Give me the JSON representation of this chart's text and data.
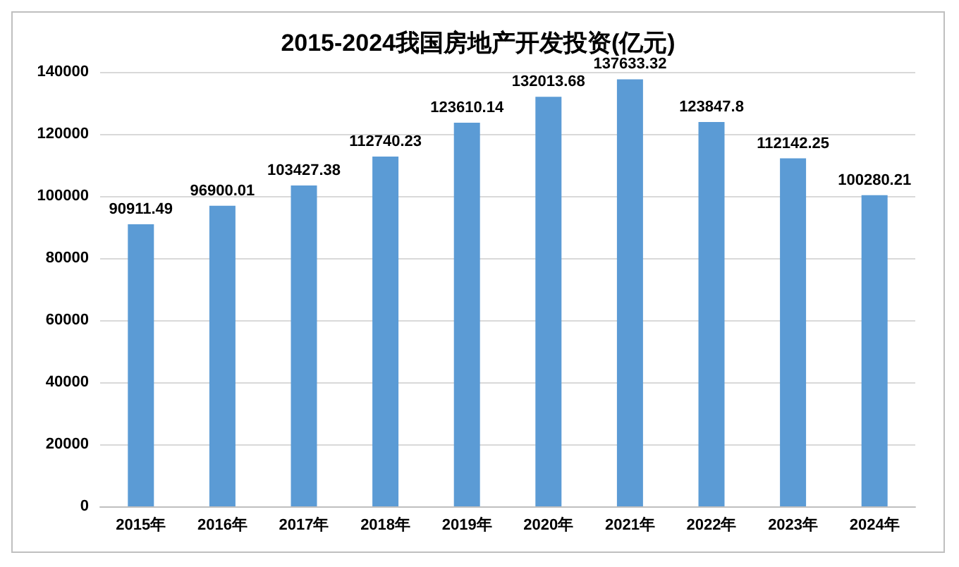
{
  "chart_data": {
    "type": "bar",
    "title": "2015-2024我国房地产开发投资(亿元)",
    "categories": [
      "2015年",
      "2016年",
      "2017年",
      "2018年",
      "2019年",
      "2020年",
      "2021年",
      "2022年",
      "2023年",
      "2024年"
    ],
    "values": [
      90911.49,
      96900.01,
      103427.38,
      112740.23,
      123610.14,
      132013.68,
      137633.32,
      123847.8,
      112142.25,
      100280.21
    ],
    "color": "#5b9bd5",
    "ylim": [
      0,
      140000
    ],
    "yticks": [
      0,
      20000,
      40000,
      60000,
      80000,
      100000,
      120000,
      140000
    ],
    "grid": "y",
    "data_labels": true
  }
}
